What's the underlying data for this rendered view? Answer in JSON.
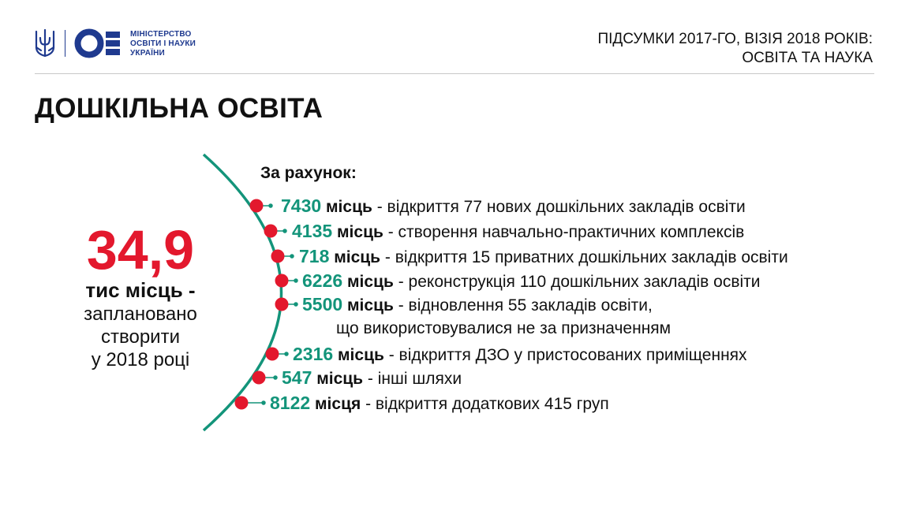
{
  "header": {
    "ministry_lines": [
      "МІНІСТЕРСТВО",
      "ОСВІТИ І НАУКИ",
      "УКРАЇНИ"
    ],
    "title_line1": "ПІДСУМКИ 2017-ГО, ВІЗІЯ 2018 РОКІВ:",
    "title_line2": "ОСВІТА ТА НАУКА"
  },
  "page_title": "ДОШКІЛЬНА ОСВІТА",
  "summary": {
    "number": "34,9",
    "unit": "тис місць -",
    "desc_lines": [
      "заплановано",
      "створити",
      "у 2018 році"
    ]
  },
  "list_heading": "За рахунок:",
  "items": [
    {
      "number": "7430",
      "word": "місць",
      "text": " - відкриття 77 нових дошкільних закладів освіти"
    },
    {
      "number": "4135",
      "word": "місць",
      "text": " - створення навчально-практичних комплексів"
    },
    {
      "number": "718",
      "word": "місць",
      "text": " - відкриття 15 приватних дошкільних закладів освіти"
    },
    {
      "number": "6226",
      "word": "місць",
      "text": " - реконструкція 110 дошкільних закладів освіти"
    },
    {
      "number": "5500",
      "word": "місць",
      "text": " - відновлення 55 закладів освіти,",
      "line2": "що використовувалися не за призначенням"
    },
    {
      "number": "2316",
      "word": "місць",
      "text": " - відкриття ДЗО у пристосованих приміщеннях"
    },
    {
      "number": "547",
      "word": "місць",
      "text": " - інші шляхи"
    },
    {
      "number": "8122",
      "word": "місця",
      "text": " - відкриття додаткових 415 груп"
    }
  ],
  "colors": {
    "accent_red": "#e3182d",
    "accent_teal": "#13947a",
    "brand_blue": "#1f3a8f"
  },
  "icons": [
    "trident-icon",
    "ministry-logo-icon"
  ]
}
